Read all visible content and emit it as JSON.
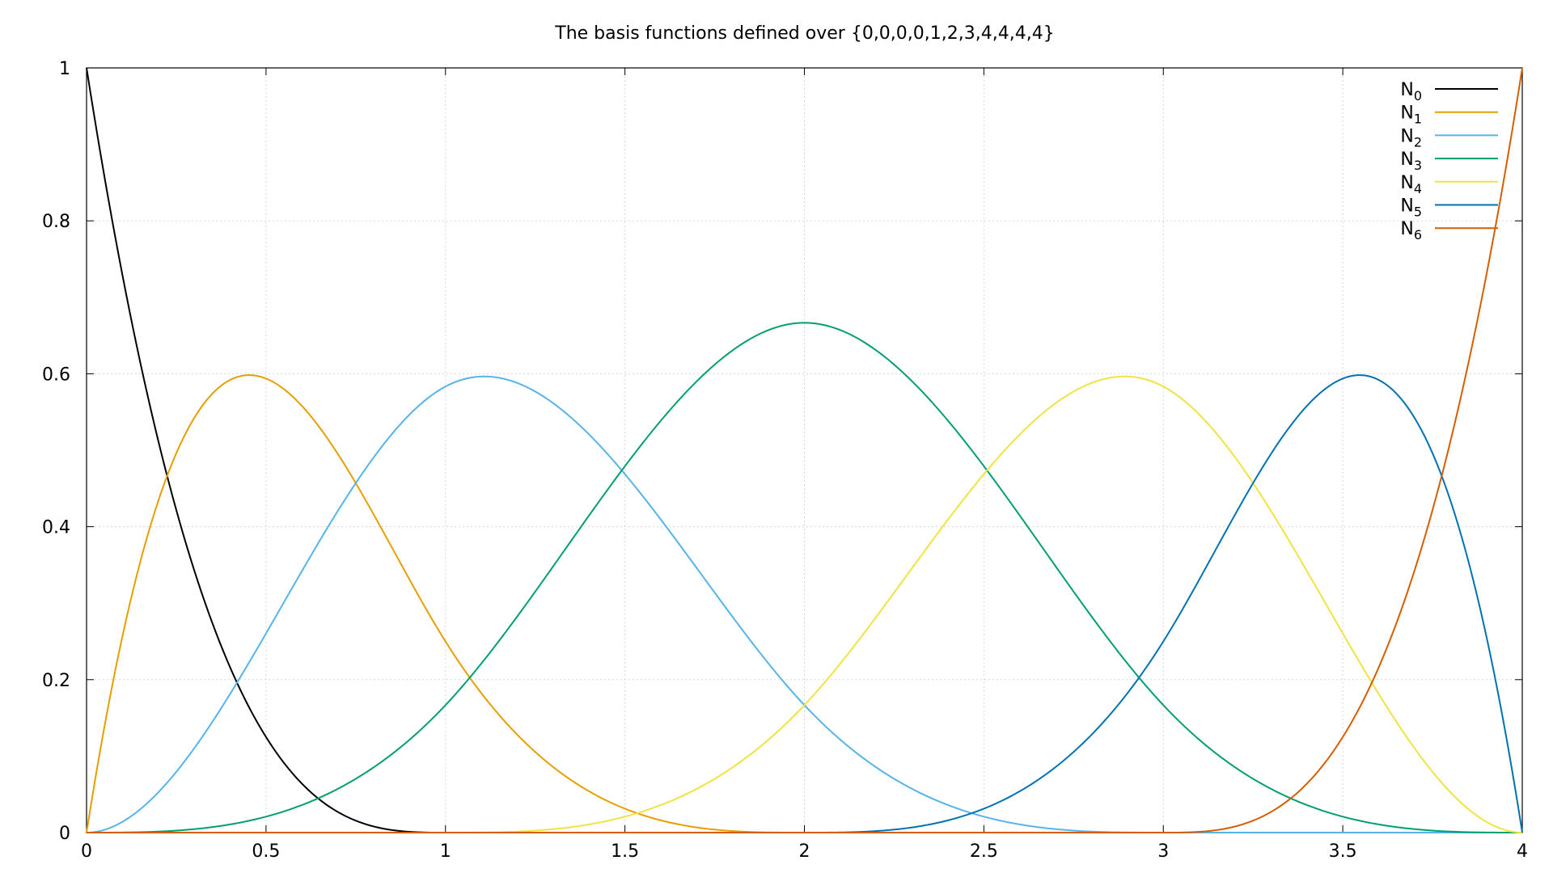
{
  "chart_data": {
    "type": "line",
    "title": "The basis functions defined over {0,0,0,0,1,2,3,4,4,4,4}",
    "xlabel": "",
    "ylabel": "",
    "xlim": [
      0,
      4
    ],
    "ylim": [
      0,
      1
    ],
    "x_ticks": [
      "0",
      "0.5",
      "1",
      "1.5",
      "2",
      "2.5",
      "3",
      "3.5",
      "4"
    ],
    "y_ticks": [
      "0",
      "0.2",
      "0.4",
      "0.6",
      "0.8",
      "1"
    ],
    "grid": true,
    "legend_position": "top-right",
    "degree": 3,
    "knots": [
      0,
      0,
      0,
      0,
      1,
      2,
      3,
      4,
      4,
      4,
      4
    ],
    "series": [
      {
        "name": "N",
        "sub": "0",
        "color": "#000000",
        "peak": [
          0.0,
          1.0
        ]
      },
      {
        "name": "N",
        "sub": "1",
        "color": "#e69f00",
        "peak": [
          0.45,
          0.6
        ]
      },
      {
        "name": "N",
        "sub": "2",
        "color": "#56b4e9",
        "peak": [
          1.1,
          0.6
        ]
      },
      {
        "name": "N",
        "sub": "3",
        "color": "#009e73",
        "peak": [
          2.0,
          0.667
        ]
      },
      {
        "name": "N",
        "sub": "4",
        "color": "#f0e442",
        "peak": [
          2.9,
          0.6
        ]
      },
      {
        "name": "N",
        "sub": "5",
        "color": "#0072b2",
        "peak": [
          3.55,
          0.6
        ]
      },
      {
        "name": "N",
        "sub": "6",
        "color": "#d55e00",
        "peak": [
          4.0,
          1.0
        ]
      }
    ]
  }
}
